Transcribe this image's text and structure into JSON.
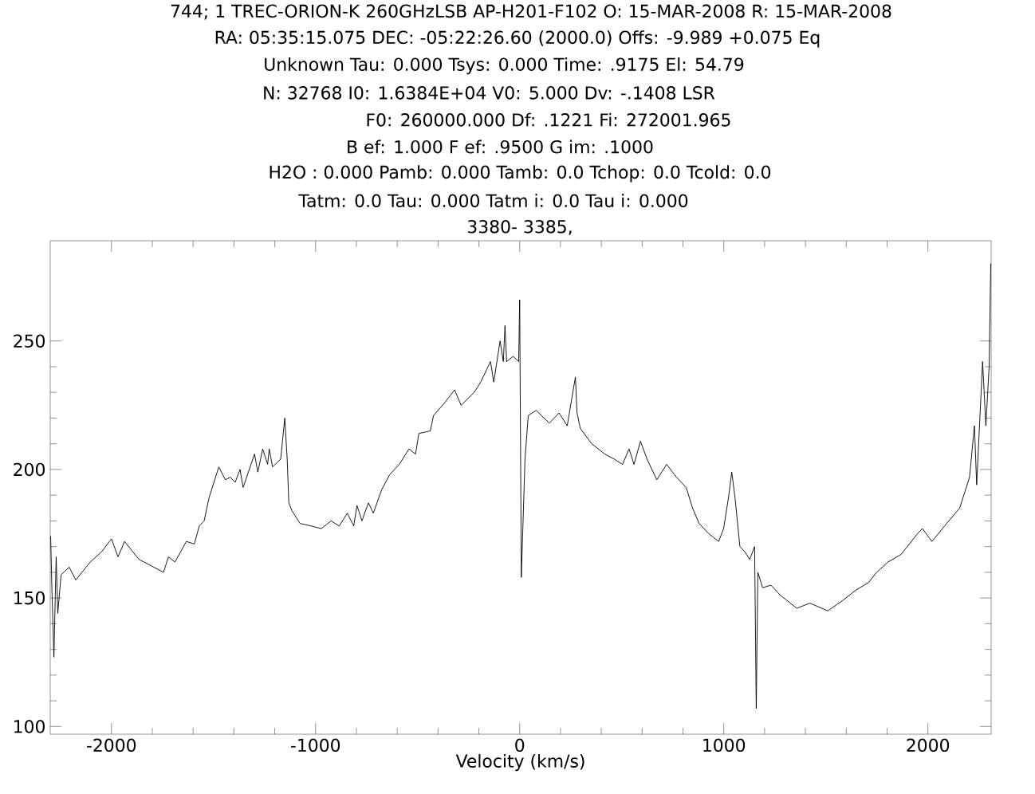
{
  "chart_data": {
    "type": "line",
    "annotations": [
      "744;  1 TREC-ORION-K 260GHzLSB    AP-H201-F102 O: 15-MAR-2008 R: 15-MAR-2008",
      "RA: 05:35:15.075  DEC: -05:22:26.60  (2000.0) Offs:    -9.989        +0.075  Eq",
      "Unknown    Tau:    0.000        Tsys:    0.000        Time:    .9175        El:  54.79",
      "N: 32768  I0:  1.6384E+04          V0:   5.000        Dv:  -.1408        LSR",
      "F0:    260000.000        Df:    .1221        Fi:    272001.965",
      "B ef:    1.000        F ef:    .9500        G im:    .1000",
      "H2O :    0.000        Pamb:    0.000        Tamb:    0.0 Tchop:    0.0 Tcold:    0.0",
      "Tatm:    0.0  Tau:    0.000        Tatm i:    0.0  Tau i:    0.000",
      "3380-   3385,"
    ],
    "xlabel": "Velocity (km/s)",
    "x": [
      -2298,
      -2292,
      -2282,
      -2271,
      -2263,
      -2247,
      -2207,
      -2175,
      -2104,
      -2048,
      -2000,
      -1968,
      -1936,
      -1865,
      -1817,
      -1745,
      -1721,
      -1689,
      -1633,
      -1594,
      -1570,
      -1546,
      -1522,
      -1474,
      -1442,
      -1418,
      -1394,
      -1370,
      -1355,
      -1299,
      -1283,
      -1259,
      -1235,
      -1227,
      -1211,
      -1171,
      -1151,
      -1139,
      -1131,
      -1116,
      -1076,
      -1020,
      -972,
      -924,
      -884,
      -845,
      -813,
      -797,
      -773,
      -741,
      -717,
      -677,
      -637,
      -590,
      -542,
      -510,
      -494,
      -438,
      -422,
      -367,
      -319,
      -287,
      -223,
      -191,
      -143,
      -127,
      -96,
      -80,
      -72,
      -64,
      -32,
      -5,
      0,
      8,
      26,
      42,
      81,
      145,
      193,
      233,
      273,
      281,
      297,
      353,
      417,
      464,
      504,
      536,
      560,
      592,
      624,
      672,
      720,
      768,
      816,
      847,
      879,
      927,
      975,
      999,
      1023,
      1039,
      1055,
      1079,
      1103,
      1127,
      1151,
      1159,
      1167,
      1190,
      1231,
      1278,
      1358,
      1422,
      1510,
      1582,
      1646,
      1709,
      1749,
      1805,
      1869,
      1949,
      1973,
      2020,
      2092,
      2156,
      2204,
      2228,
      2239,
      2268,
      2284,
      2300,
      2308
    ],
    "values": [
      174,
      154,
      127,
      166,
      144,
      159,
      162,
      157,
      164,
      168,
      173,
      166,
      172,
      165,
      163,
      160,
      166,
      164,
      172,
      171,
      178,
      180,
      189,
      201,
      196,
      197,
      195,
      200,
      193,
      206,
      199,
      208,
      202,
      208,
      201,
      204,
      220,
      204,
      187,
      184,
      179,
      178,
      177,
      180,
      178,
      183,
      178,
      186,
      180,
      187,
      183,
      192,
      198,
      202,
      208,
      206,
      214,
      215,
      221,
      226,
      231,
      225,
      230,
      234,
      242,
      234,
      250,
      242,
      256,
      242,
      244,
      242,
      266,
      158,
      204,
      221,
      223,
      218,
      222,
      217,
      236,
      222,
      216,
      210,
      206,
      204,
      202,
      208,
      202,
      211,
      204,
      196,
      202,
      197,
      193,
      185,
      179,
      175,
      172,
      177,
      189,
      199,
      189,
      170,
      168,
      165,
      170,
      107,
      160,
      154,
      155,
      151,
      146,
      148,
      145,
      149,
      153,
      156,
      160,
      164,
      167,
      175,
      177,
      172,
      179,
      185,
      197,
      217,
      194,
      242,
      217,
      240,
      280
    ],
    "color": "#000000",
    "xlim": [
      -2300,
      2310
    ],
    "ylim": [
      97,
      289
    ],
    "xticks": [
      -2000,
      -1000,
      0,
      1000,
      2000
    ],
    "yticks": [
      100,
      150,
      200,
      250
    ]
  }
}
